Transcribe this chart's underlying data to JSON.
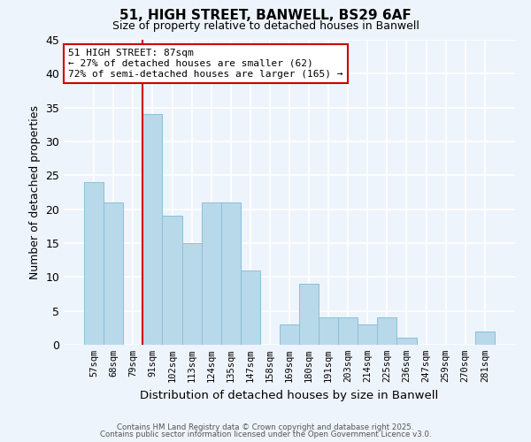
{
  "title": "51, HIGH STREET, BANWELL, BS29 6AF",
  "subtitle": "Size of property relative to detached houses in Banwell",
  "xlabel": "Distribution of detached houses by size in Banwell",
  "ylabel": "Number of detached properties",
  "bar_labels": [
    "57sqm",
    "68sqm",
    "79sqm",
    "91sqm",
    "102sqm",
    "113sqm",
    "124sqm",
    "135sqm",
    "147sqm",
    "158sqm",
    "169sqm",
    "180sqm",
    "191sqm",
    "203sqm",
    "214sqm",
    "225sqm",
    "236sqm",
    "247sqm",
    "259sqm",
    "270sqm",
    "281sqm"
  ],
  "bar_values": [
    24,
    21,
    0,
    34,
    19,
    15,
    21,
    21,
    11,
    0,
    3,
    9,
    4,
    4,
    3,
    4,
    1,
    0,
    0,
    0,
    2
  ],
  "bar_color": "#b8d9ea",
  "bar_edge_color": "#8bbfd8",
  "vline_color": "#cc0000",
  "vline_x_index": 3,
  "ylim": [
    0,
    45
  ],
  "yticks": [
    0,
    5,
    10,
    15,
    20,
    25,
    30,
    35,
    40,
    45
  ],
  "annotation_title": "51 HIGH STREET: 87sqm",
  "annotation_line1": "← 27% of detached houses are smaller (62)",
  "annotation_line2": "72% of semi-detached houses are larger (165) →",
  "annotation_box_color": "white",
  "annotation_box_edge_color": "#cc0000",
  "footer1": "Contains HM Land Registry data © Crown copyright and database right 2025.",
  "footer2": "Contains public sector information licensed under the Open Government Licence v3.0.",
  "background_color": "#eef4fb",
  "grid_color": "white"
}
